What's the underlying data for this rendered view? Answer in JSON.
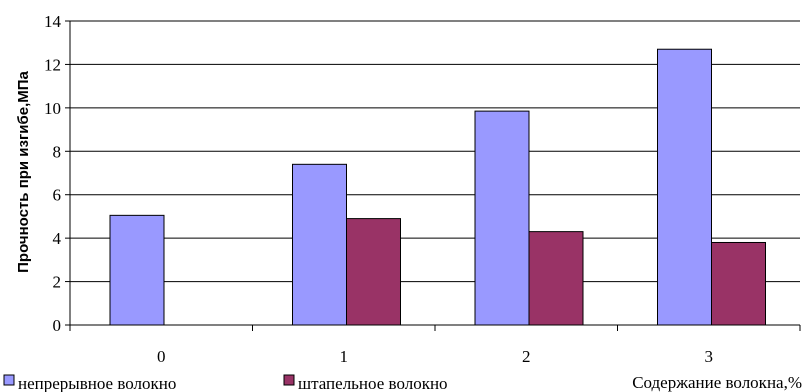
{
  "chart_data": {
    "type": "bar",
    "categories": [
      "0",
      "1",
      "2",
      "3"
    ],
    "series": [
      {
        "name": "непрерывное волокно",
        "values": [
          5.05,
          7.4,
          9.85,
          12.7
        ],
        "color": "#9999ff"
      },
      {
        "name": "штапельное волокно",
        "values": [
          0,
          4.9,
          4.3,
          3.8
        ],
        "color": "#993366"
      }
    ],
    "title": "",
    "xlabel": "Содержание волокна,%",
    "ylabel": "Прочность при изгибе,МПа",
    "ylim": [
      0,
      14
    ],
    "yticks": [
      "0",
      "2",
      "4",
      "6",
      "8",
      "10",
      "12",
      "14"
    ],
    "grid": true,
    "legend": "bottom-left"
  }
}
